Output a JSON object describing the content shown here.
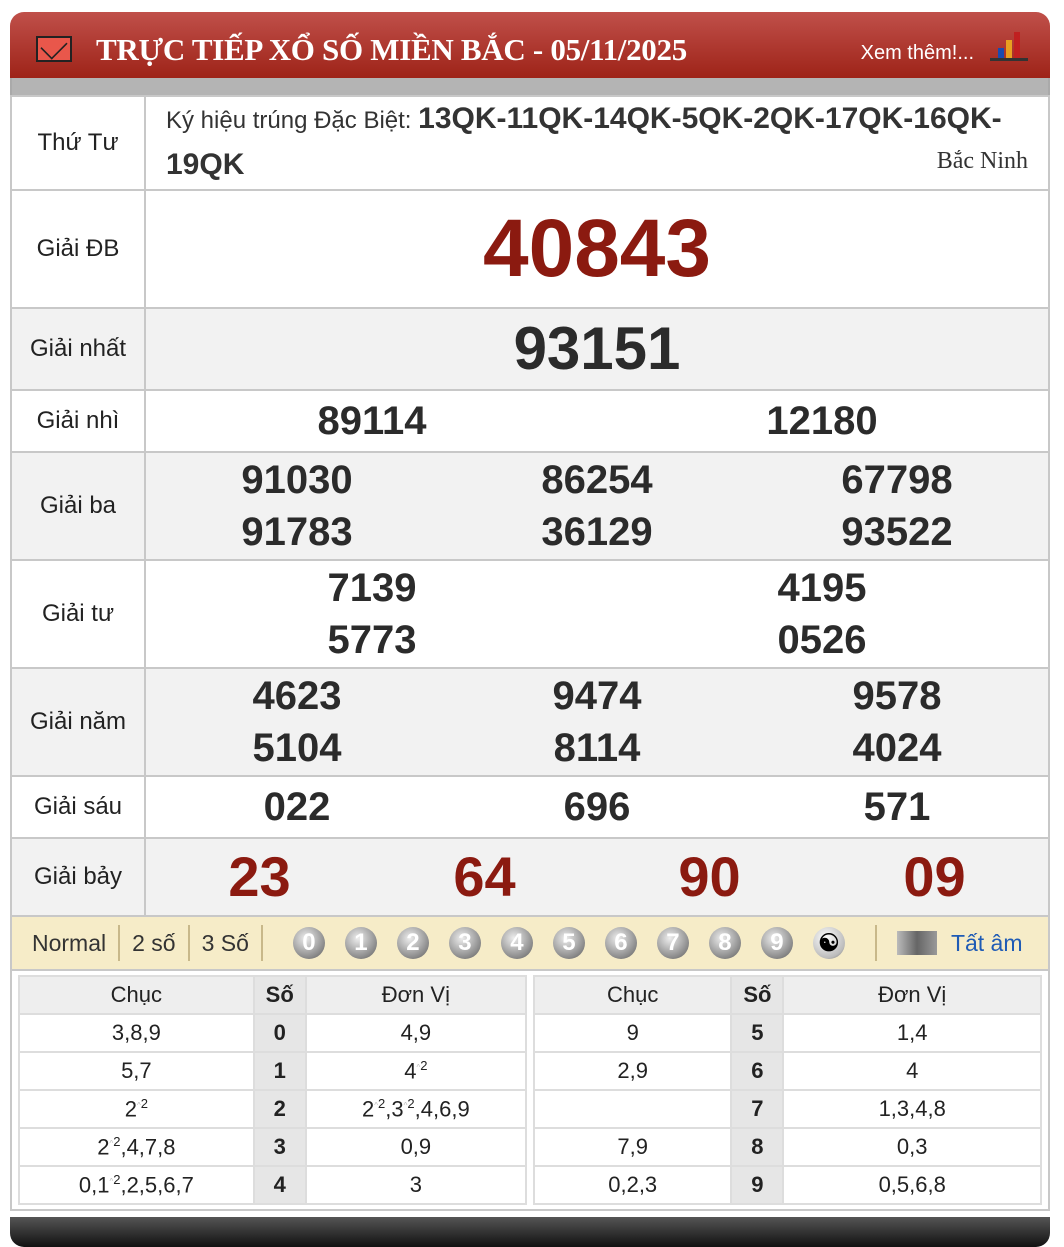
{
  "header": {
    "title": "TRỰC TIẾP XỔ SỐ MIỀN BẮC - 05/11/2025",
    "more": "Xem thêm!..."
  },
  "info": {
    "day": "Thứ Tư",
    "symbol_label": "Ký hiệu trúng Đặc Biệt:",
    "symbols": "13QK-11QK-14QK-5QK-2QK-17QK-16QK-19QK",
    "province": "Bắc Ninh"
  },
  "prizes": [
    {
      "label": "Giải ĐB",
      "numbers": [
        "40843"
      ]
    },
    {
      "label": "Giải nhất",
      "numbers": [
        "93151"
      ]
    },
    {
      "label": "Giải nhì",
      "numbers": [
        "89114",
        "12180"
      ]
    },
    {
      "label": "Giải ba",
      "numbers": [
        "91030",
        "86254",
        "67798",
        "91783",
        "36129",
        "93522"
      ]
    },
    {
      "label": "Giải tư",
      "numbers": [
        "7139",
        "4195",
        "5773",
        "0526"
      ]
    },
    {
      "label": "Giải năm",
      "numbers": [
        "4623",
        "9474",
        "9578",
        "5104",
        "8114",
        "4024"
      ]
    },
    {
      "label": "Giải sáu",
      "numbers": [
        "022",
        "696",
        "571"
      ]
    },
    {
      "label": "Giải bảy",
      "numbers": [
        "23",
        "64",
        "90",
        "09"
      ]
    }
  ],
  "toolbar": {
    "modes": [
      "Normal",
      "2 số",
      "3 Số"
    ],
    "digits": [
      "0",
      "1",
      "2",
      "3",
      "4",
      "5",
      "6",
      "7",
      "8",
      "9"
    ],
    "mute": "Tất âm"
  },
  "loto": {
    "headers": [
      "Chục",
      "Số",
      "Đơn Vị"
    ],
    "left": [
      [
        "3,8,9",
        "0",
        "4,9"
      ],
      [
        "5,7",
        "1",
        "4^2"
      ],
      [
        "2^2",
        "2",
        "2^2,3^2,4,6,9"
      ],
      [
        "2^2,4,7,8",
        "3",
        "0,9"
      ],
      [
        "0,1^2,2,5,6,7",
        "4",
        "3"
      ]
    ],
    "right": [
      [
        "9",
        "5",
        "1,4"
      ],
      [
        "2,9",
        "6",
        "4"
      ],
      [
        "",
        "7",
        "1,3,4,8"
      ],
      [
        "7,9",
        "8",
        "0,3"
      ],
      [
        "0,2,3",
        "9",
        "0,5,6,8"
      ]
    ]
  },
  "colors": {
    "header": "#a8271c",
    "special": "#8b1a10",
    "toolbar": "#f6ecc8"
  }
}
